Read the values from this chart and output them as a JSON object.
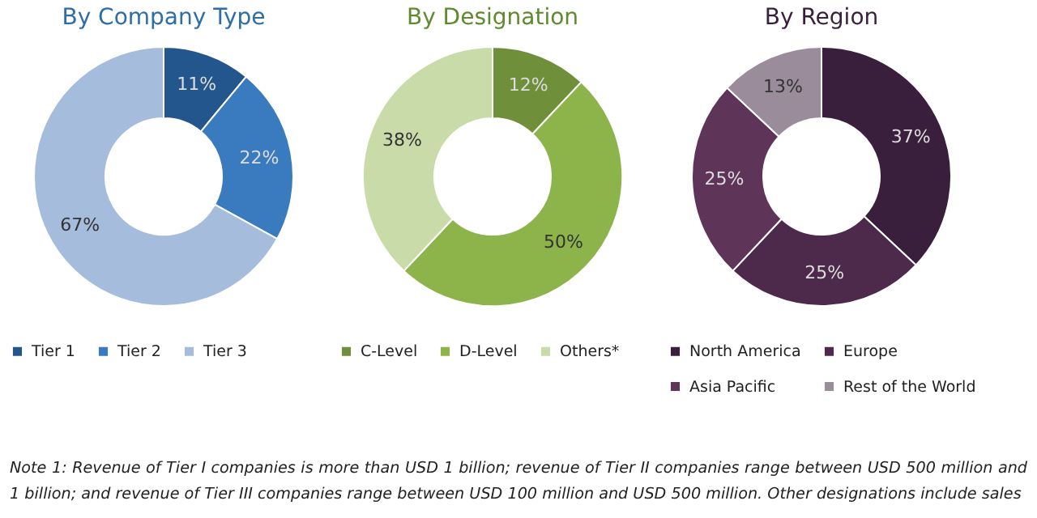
{
  "chart_data": [
    {
      "type": "donut",
      "title": "By Company Type",
      "categories": [
        "Tier 1",
        "Tier 2",
        "Tier 3"
      ],
      "values": [
        11,
        22,
        67
      ],
      "colors": [
        "#23568c",
        "#3a7bbf",
        "#a6bcdc"
      ],
      "value_labels": [
        "11%",
        "22%",
        "67%"
      ],
      "legend": "bottom"
    },
    {
      "type": "donut",
      "title": "By Designation",
      "categories": [
        "C-Level",
        "D-Level",
        "Others*"
      ],
      "values": [
        12,
        50,
        38
      ],
      "colors": [
        "#6f8f3a",
        "#8cb44a",
        "#c9dba9"
      ],
      "value_labels": [
        "12%",
        "50%",
        "38%"
      ],
      "legend": "bottom"
    },
    {
      "type": "donut",
      "title": "By Region",
      "categories": [
        "North America",
        "Europe",
        "Asia Pacific",
        "Rest of the World"
      ],
      "values": [
        37,
        25,
        25,
        13
      ],
      "colors": [
        "#3a1f3c",
        "#4d2a4c",
        "#5e3459",
        "#9a8c9a"
      ],
      "value_labels": [
        "37%",
        "25%",
        "25%",
        "13%"
      ],
      "legend": "bottom",
      "annotations": [
        "Note 1: Revenue of Tier I companies is more than USD 1 billion; revenue of Tier II companies range between USD 500 million and 1 billion; and revenue of Tier III companies range between USD 100 million and USD 500 million. Other designations include sales"
      ]
    }
  ]
}
